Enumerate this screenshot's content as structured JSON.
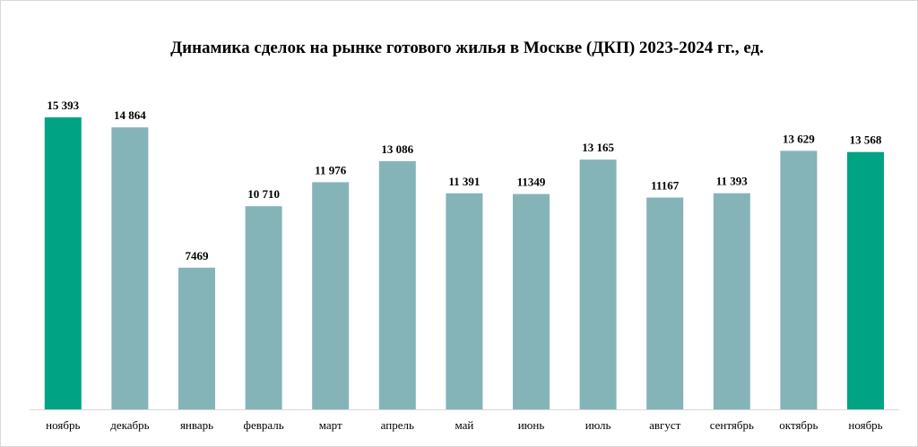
{
  "chart_data": {
    "type": "bar",
    "title": "Динамика сделок на рынке готового жилья в Москве (ДКП) 2023-2024 гг., ед.",
    "xlabel": "",
    "ylabel": "",
    "categories": [
      "ноябрь",
      "декабрь",
      "январь",
      "февраль",
      "март",
      "апрель",
      "май",
      "июнь",
      "июль",
      "август",
      "сентябрь",
      "октябрь",
      "ноябрь"
    ],
    "values": [
      15393,
      14864,
      7469,
      10710,
      11976,
      13086,
      11391,
      11349,
      13165,
      11167,
      11393,
      13629,
      13568
    ],
    "value_labels": [
      "15 393",
      "14 864",
      "7469",
      "10 710",
      "11 976",
      "13 086",
      "11 391",
      "11349",
      "13 165",
      "11167",
      "11 393",
      "13 629",
      "13 568"
    ],
    "highlight_indices": [
      0,
      12
    ],
    "colors": {
      "bar": "#84b4b8",
      "highlight": "#00a383",
      "axis": "#d9d9d9"
    },
    "ylim": [
      0,
      16500
    ],
    "grid": false,
    "legend": "none"
  }
}
